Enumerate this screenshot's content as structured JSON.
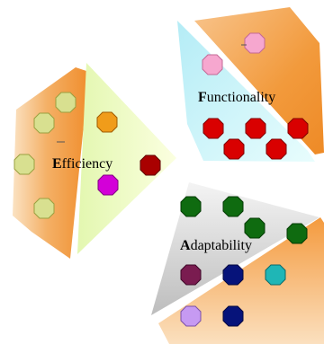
{
  "segments": [
    {
      "id": "efficiency",
      "cap": "E",
      "rest": "fficiency"
    },
    {
      "id": "functionality",
      "cap": "F",
      "rest": "unctionality"
    },
    {
      "id": "adaptability",
      "cap": "A",
      "rest": "daptability"
    }
  ],
  "colors": {
    "efficiency_panel": "#f0ffc0",
    "functionality_panel": "#c8f6f8",
    "adaptability_panel": "#d6d6d6",
    "orange_band": "#f2a24a",
    "red": "#d90000",
    "dark_green": "#0f6b10",
    "olive": "#d8e090",
    "pink": "#f6a7cf",
    "purple": "#c69af2",
    "navy": "#06137a",
    "teal": "#1fb6b6",
    "magenta": "#d300d8",
    "dark_red": "#a90000",
    "orange_dot": "#f09c1a",
    "maroon": "#7a1c50"
  }
}
